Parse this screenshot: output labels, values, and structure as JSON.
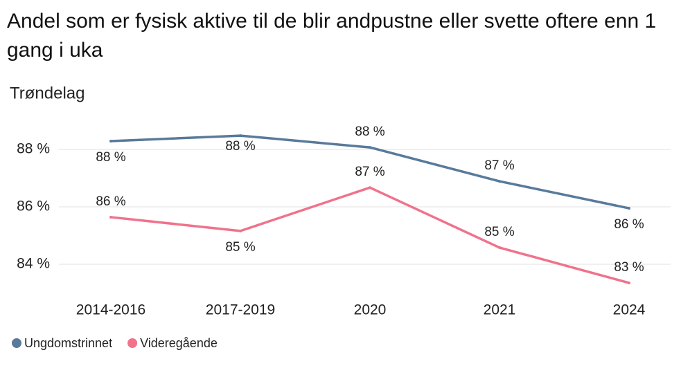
{
  "chart_data": {
    "type": "line",
    "title": "Andel som er fysisk aktive til de blir andpustne eller svette oftere enn 1 gang i uka",
    "subtitle": "Trøndelag",
    "categories": [
      "2014-2016",
      "2017-2019",
      "2020",
      "2021",
      "2024"
    ],
    "series": [
      {
        "name": "Ungdomstrinnet",
        "color": "#587a9b",
        "values": [
          88.29,
          88.48,
          88.07,
          86.89,
          85.95
        ],
        "value_labels": [
          "88 %",
          "88 %",
          "88 %",
          "87 %",
          "86 %"
        ]
      },
      {
        "name": "Videregående",
        "color": "#f0728b",
        "values": [
          85.64,
          85.16,
          86.67,
          84.58,
          83.35
        ],
        "value_labels": [
          "86 %",
          "85 %",
          "87 %",
          "85 %",
          "83 %"
        ]
      }
    ],
    "ylim": [
      83,
      89
    ],
    "yticks": [
      {
        "value": 84,
        "label": "84 %"
      },
      {
        "value": 86,
        "label": "86 %"
      },
      {
        "value": 88,
        "label": "88 %"
      }
    ],
    "grid": true
  }
}
